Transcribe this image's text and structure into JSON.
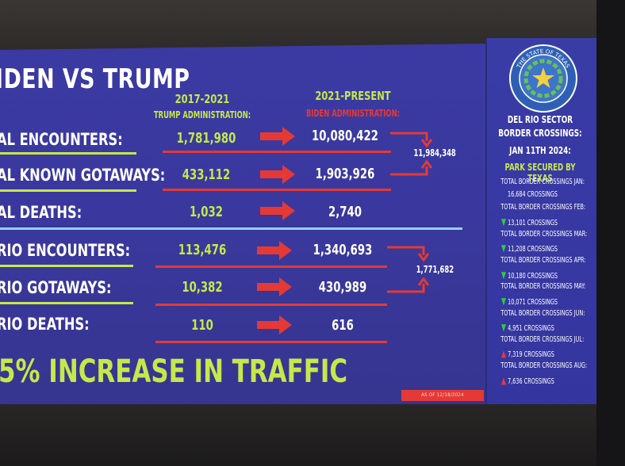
{
  "slide": {
    "title": "IDEN VS TRUMP",
    "col_left_year": "2017-2021",
    "col_left_sub": "TRUMP ADMINISTRATION:",
    "col_right_year": "2021-PRESENT",
    "col_right_sub": "BIDEN ADMINISTRATION:",
    "colors": {
      "green": "#c6e84a",
      "red": "#e53935",
      "blue_bg": "#3a389d",
      "divider": "#8fd3f4"
    },
    "rows": [
      {
        "label": "AL ENCOUNTERS:",
        "trump": "1,781,980",
        "biden": "10,080,422"
      },
      {
        "label": "AL KNOWN GOTAWAYS:",
        "trump": "433,112",
        "biden": "1,903,926"
      },
      {
        "label": "AL DEATHS:",
        "trump": "1,032",
        "biden": "2,740"
      },
      {
        "label": "RIO ENCOUNTERS:",
        "trump": "113,476",
        "biden": "1,340,693"
      },
      {
        "label": "RIO GOTAWAYS:",
        "trump": "10,382",
        "biden": "430,989"
      },
      {
        "label": "RIO DEATHS:",
        "trump": "110",
        "biden": "616"
      }
    ],
    "total_national": "11,984,348",
    "total_del_rio": "1,771,682",
    "headline": "5% INCREASE IN TRAFFIC",
    "source": "AS OF 12/18/2024"
  },
  "panel": {
    "seal_icon": "texas-state-seal-icon",
    "seal_text": "THE STATE OF TEXAS",
    "heading": "DEL RIO SECTOR BORDER CROSSINGS:",
    "date": "JAN 11TH 2024:",
    "park": "PARK SECURED BY TEXAS",
    "items": [
      {
        "label": "TOTAL BORDER CROSSINGS JAN:",
        "value": "16,684 CROSSINGS",
        "trend": "none"
      },
      {
        "label": "TOTAL BORDER CROSSINGS FEB:",
        "value": "13,101 CROSSINGS",
        "trend": "down"
      },
      {
        "label": "TOTAL BORDER CROSSINGS MAR:",
        "value": "11,208 CROSSINGS",
        "trend": "down"
      },
      {
        "label": "TOTAL BORDER CROSSINGS APR:",
        "value": "10,180 CROSSINGS",
        "trend": "down"
      },
      {
        "label": "TOTAL BORDER CROSSINGS MAY:",
        "value": "10,071 CROSSINGS",
        "trend": "down"
      },
      {
        "label": "TOTAL BORDER CROSSINGS JUN:",
        "value": "4,951 CROSSINGS",
        "trend": "down"
      },
      {
        "label": "TOTAL BORDER CROSSINGS JUL:",
        "value": "7,319 CROSSINGS",
        "trend": "up"
      },
      {
        "label": "TOTAL BORDER CROSSINGS AUG:",
        "value": "7,636 CROSSINGS",
        "trend": "up"
      }
    ]
  }
}
